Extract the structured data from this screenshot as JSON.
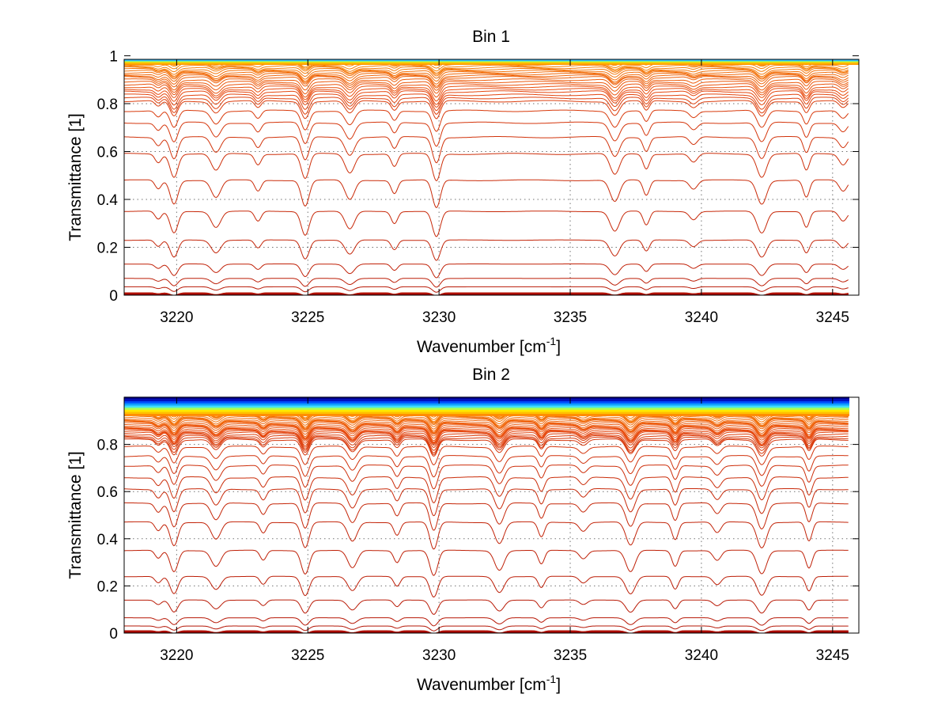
{
  "chart_data": [
    {
      "type": "line",
      "title": "Bin 1",
      "xlabel": "Wavenumber [cm",
      "xlabel_sup": "-1",
      "xlabel_end": "]",
      "ylabel": "Transmittance [1]",
      "xlim": [
        3218,
        3246
      ],
      "ylim": [
        0,
        1
      ],
      "xticks": [
        "3220",
        "3225",
        "3230",
        "3235",
        "3240",
        "3245"
      ],
      "yticks": [
        "0",
        "0.2",
        "0.4",
        "0.6",
        "0.8",
        "1"
      ],
      "grid": true,
      "legend": "none",
      "colormap": "jet",
      "colors": {
        "low": "#a00000",
        "mid": "#e84a10",
        "high": "#ff9f00",
        "top": "#ffe000"
      },
      "series_count": 60,
      "series_baselines": [
        0.01,
        0.035,
        0.07,
        0.13,
        0.23,
        0.35,
        0.48,
        0.59,
        0.66,
        0.72,
        0.77,
        0.81,
        0.85,
        0.88,
        0.91,
        0.93,
        0.95,
        0.97,
        0.985,
        0.99
      ],
      "absorption_lines_x": [
        3219.3,
        3219.9,
        3221.5,
        3223.1,
        3224.9,
        3226.6,
        3228.3,
        3229.9,
        3236.7,
        3237.9,
        3239.7,
        3242.3,
        3244.0,
        3245.4
      ]
    },
    {
      "type": "line",
      "title": "Bin 2",
      "xlabel": "Wavenumber [cm",
      "xlabel_sup": "-1",
      "xlabel_end": "]",
      "ylabel": "Transmittance [1]",
      "xlim": [
        3218,
        3246
      ],
      "ylim": [
        0,
        1
      ],
      "xticks": [
        "3220",
        "3225",
        "3230",
        "3235",
        "3240",
        "3245"
      ],
      "yticks": [
        "0",
        "0.2",
        "0.4",
        "0.6",
        "0.8"
      ],
      "grid": true,
      "legend": "none",
      "colormap": "jet",
      "colors": {
        "low": "#a00000",
        "mid": "#e84a10",
        "high": "#ff9f00",
        "top": "#00008f"
      },
      "series_count": 60,
      "series_baselines": [
        0.01,
        0.03,
        0.065,
        0.14,
        0.24,
        0.35,
        0.47,
        0.55,
        0.61,
        0.66,
        0.71,
        0.75,
        0.79,
        0.82,
        0.85,
        0.87,
        0.89,
        0.91,
        0.93,
        0.95,
        0.97,
        0.99
      ],
      "absorption_lines_x": [
        3219.3,
        3219.9,
        3221.5,
        3223.3,
        3224.9,
        3226.7,
        3228.4,
        3229.8,
        3232.3,
        3233.9,
        3235.5,
        3237.3,
        3239.0,
        3240.6,
        3242.3,
        3244.1
      ]
    }
  ]
}
